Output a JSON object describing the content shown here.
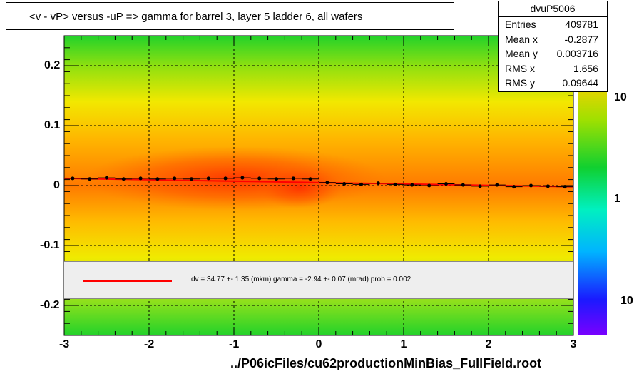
{
  "title": "<v - vP>       versus  -uP =>  gamma for barrel 3, layer 5 ladder 6, all wafers",
  "footer": "../P06icFiles/cu62productionMinBias_FullField.root",
  "stats": {
    "name": "dvuP5006",
    "rows": [
      {
        "label": "Entries",
        "value": "409781"
      },
      {
        "label": "Mean x",
        "value": "-0.2877"
      },
      {
        "label": "Mean y",
        "value": "0.003716"
      },
      {
        "label": "RMS x",
        "value": "1.656"
      },
      {
        "label": "RMS y",
        "value": "0.09644"
      }
    ]
  },
  "fit_legend": "dv =   34.77 +-  1.35 (mkm) gamma =   -2.94 +-  0.07 (mrad) prob = 0.002",
  "colors": {
    "fit_line": "#ff0000",
    "profile_points": "#000000"
  },
  "chart_data": {
    "type": "heatmap",
    "title": "<v - vP>       versus  -uP =>  gamma for barrel 3, layer 5 ladder 6, all wafers",
    "xlabel": "",
    "ylabel": "",
    "xlim": [
      -3,
      3
    ],
    "ylim": [
      -0.25,
      0.25
    ],
    "x_ticks": [
      -3,
      -2,
      -1,
      0,
      1,
      2,
      3
    ],
    "x_tick_labels": [
      "-3",
      "-2",
      "-1",
      "0",
      "1",
      "2",
      "3"
    ],
    "y_ticks": [
      -0.2,
      -0.1,
      0,
      0.1,
      0.2
    ],
    "y_tick_labels": [
      "-0.2",
      "-0.1",
      "0",
      "0.1",
      "0.2"
    ],
    "grid": true,
    "colorbar": {
      "scale": "log",
      "tick_labels": [
        "10",
        "1",
        "10"
      ]
    },
    "profile": {
      "x": [
        -2.9,
        -2.7,
        -2.5,
        -2.3,
        -2.1,
        -1.9,
        -1.7,
        -1.5,
        -1.3,
        -1.1,
        -0.9,
        -0.7,
        -0.5,
        -0.3,
        -0.1,
        0.1,
        0.3,
        0.5,
        0.7,
        0.9,
        1.1,
        1.3,
        1.5,
        1.7,
        1.9,
        2.1,
        2.3,
        2.5,
        2.7,
        2.9
      ],
      "y": [
        0.012,
        0.011,
        0.013,
        0.011,
        0.012,
        0.011,
        0.012,
        0.011,
        0.012,
        0.012,
        0.013,
        0.012,
        0.011,
        0.012,
        0.011,
        0.005,
        0.003,
        0.002,
        0.004,
        0.002,
        0.001,
        0.0,
        0.003,
        0.001,
        -0.001,
        0.001,
        -0.002,
        0.0,
        -0.001,
        -0.002
      ]
    },
    "fit": {
      "y_at_xmin": 0.012,
      "y_at_xmax": -0.002
    }
  }
}
